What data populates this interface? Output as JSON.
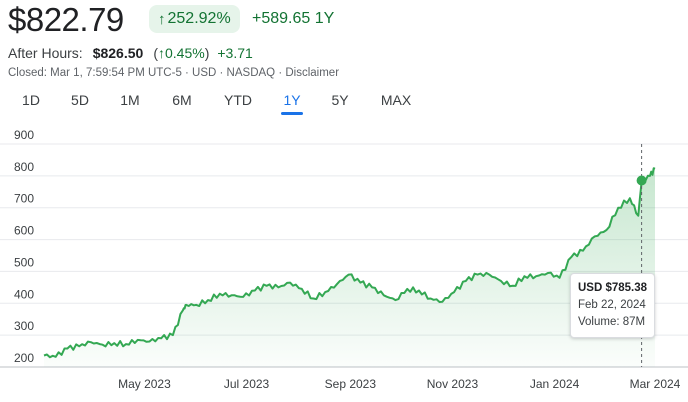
{
  "header": {
    "price": "$822.79",
    "pct_change": "252.92%",
    "abs_change": "+589.65",
    "period": "1Y",
    "after_hours_label": "After Hours:",
    "after_hours_price": "$826.50",
    "after_hours_pct": "0.45%",
    "after_hours_change": "+3.71",
    "closed_line": "Closed: Mar 1, 7:59:54 PM UTC-5 · USD · NASDAQ · Disclaimer"
  },
  "tabs": [
    {
      "label": "1D",
      "active": false
    },
    {
      "label": "5D",
      "active": false
    },
    {
      "label": "1M",
      "active": false
    },
    {
      "label": "6M",
      "active": false
    },
    {
      "label": "YTD",
      "active": false
    },
    {
      "label": "1Y",
      "active": true
    },
    {
      "label": "5Y",
      "active": false
    },
    {
      "label": "MAX",
      "active": false
    }
  ],
  "tooltip": {
    "price": "USD $785.38",
    "date": "Feb 22, 2024",
    "volume": "Volume: 87M"
  },
  "chart_data": {
    "type": "area",
    "title": "",
    "xlabel": "",
    "ylabel": "",
    "ylim": [
      200,
      900
    ],
    "yticks": [
      200,
      300,
      400,
      500,
      600,
      700,
      800,
      900
    ],
    "x_tick_labels": [
      "May 2023",
      "Jul 2023",
      "Sep 2023",
      "Nov 2023",
      "Jan 2024",
      "Mar 2024"
    ],
    "x_range": [
      "2023-03-02",
      "2024-03-01"
    ],
    "grid": true,
    "line_color": "#34a853",
    "highlight": {
      "date": "2024-02-22",
      "value": 785.38
    },
    "series": [
      {
        "x": [
          "2023-03-02",
          "2023-03-09",
          "2023-03-16",
          "2023-03-23",
          "2023-03-30",
          "2023-04-06",
          "2023-04-13",
          "2023-04-20",
          "2023-04-27",
          "2023-05-04",
          "2023-05-11",
          "2023-05-18",
          "2023-05-24",
          "2023-05-26",
          "2023-06-01",
          "2023-06-08",
          "2023-06-15",
          "2023-06-22",
          "2023-06-29",
          "2023-07-06",
          "2023-07-13",
          "2023-07-20",
          "2023-07-27",
          "2023-08-03",
          "2023-08-10",
          "2023-08-17",
          "2023-08-24",
          "2023-08-31",
          "2023-09-07",
          "2023-09-14",
          "2023-09-21",
          "2023-09-28",
          "2023-10-05",
          "2023-10-12",
          "2023-10-19",
          "2023-10-26",
          "2023-11-02",
          "2023-11-09",
          "2023-11-16",
          "2023-11-23",
          "2023-11-30",
          "2023-12-07",
          "2023-12-14",
          "2023-12-21",
          "2023-12-28",
          "2024-01-04",
          "2024-01-11",
          "2024-01-18",
          "2024-01-25",
          "2024-02-01",
          "2024-02-08",
          "2024-02-15",
          "2024-02-20",
          "2024-02-22",
          "2024-02-27",
          "2024-03-01"
        ],
        "values": [
          236,
          232,
          258,
          265,
          278,
          270,
          275,
          272,
          285,
          280,
          290,
          300,
          378,
          395,
          395,
          410,
          430,
          425,
          420,
          440,
          455,
          450,
          465,
          445,
          415,
          435,
          460,
          490,
          465,
          450,
          425,
          410,
          445,
          440,
          415,
          405,
          435,
          470,
          490,
          490,
          470,
          455,
          485,
          485,
          495,
          480,
          545,
          565,
          610,
          630,
          700,
          730,
          675,
          785,
          800,
          822
        ]
      }
    ]
  }
}
